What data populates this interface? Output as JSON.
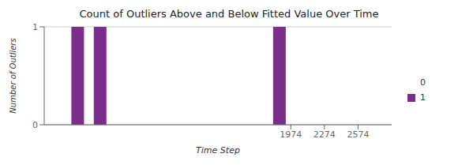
{
  "chart_data": {
    "type": "bar",
    "title": "Count of Outliers Above and Below Fitted Value Over Time",
    "xlabel": "Time Step",
    "ylabel": "Number of Outliers",
    "x": [
      74,
      274,
      1874
    ],
    "series": [
      {
        "name": "0",
        "color": "#ffffff",
        "values": [
          null,
          null,
          null
        ]
      },
      {
        "name": "1",
        "color": "#7B2D8B",
        "values": [
          1,
          1,
          1
        ]
      }
    ],
    "xlim": [
      -226,
      2874
    ],
    "xticks": [
      1974,
      2274,
      2574
    ],
    "ylim": [
      0,
      1
    ],
    "yticks": [
      0,
      1
    ],
    "grid": true,
    "legend": "right"
  }
}
